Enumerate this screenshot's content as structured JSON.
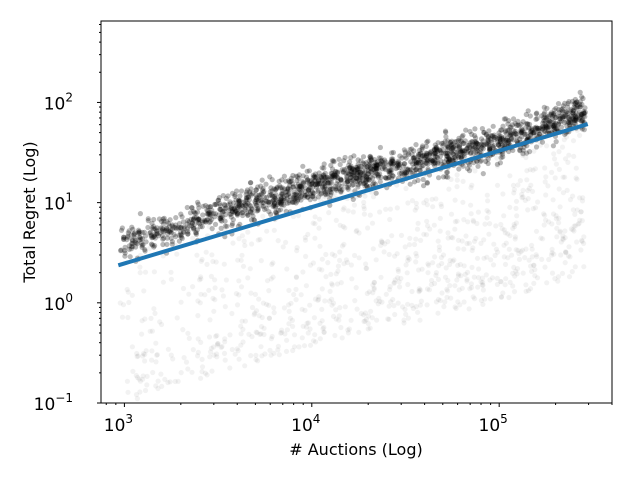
{
  "chart_data": {
    "type": "scatter",
    "title": "",
    "xlabel": "# Auctions (Log)",
    "ylabel": "Total Regret (Log)",
    "xscale": "log",
    "yscale": "log",
    "xlim": [
      750,
      400000
    ],
    "ylim": [
      0.1,
      650
    ],
    "grid": false,
    "x_ticks": [
      {
        "value": 1000,
        "base": "10",
        "exp": "3"
      },
      {
        "value": 10000,
        "base": "10",
        "exp": "4"
      },
      {
        "value": 100000,
        "base": "10",
        "exp": "5"
      }
    ],
    "y_ticks": [
      {
        "value": 0.1,
        "base": "10",
        "exp": "−1"
      },
      {
        "value": 1,
        "base": "10",
        "exp": "0"
      },
      {
        "value": 10,
        "base": "10",
        "exp": "1"
      },
      {
        "value": 100,
        "base": "10",
        "exp": "2"
      }
    ],
    "series": [
      {
        "kind": "scatter",
        "color": "#000000",
        "x_range": [
          950,
          290000
        ],
        "trend": [
          [
            1000,
            4
          ],
          [
            10000,
            15
          ],
          [
            100000,
            40
          ],
          [
            280000,
            80
          ]
        ]
      },
      {
        "kind": "line",
        "color": "#1f77b4",
        "x": [
          950,
          290000
        ],
        "y": [
          2.4,
          60
        ]
      }
    ]
  }
}
